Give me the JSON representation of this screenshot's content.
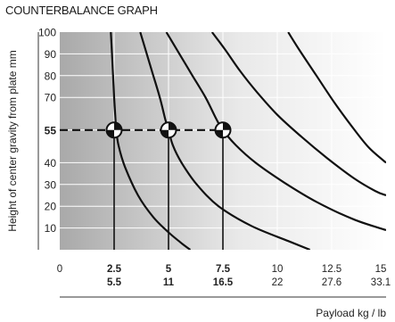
{
  "chart_data": {
    "type": "line",
    "title": "COUNTERBALANCE GRAPH",
    "xlabel": "Payload kg / lb",
    "ylabel": "Height of center gravity from plate mm",
    "xlim": [
      0,
      15
    ],
    "ylim": [
      0,
      100
    ],
    "x_ticks": [
      {
        "kg": "0",
        "lb": "",
        "bold": false
      },
      {
        "kg": "2.5",
        "lb": "5.5",
        "bold": true
      },
      {
        "kg": "5",
        "lb": "11",
        "bold": true
      },
      {
        "kg": "7.5",
        "lb": "16.5",
        "bold": true
      },
      {
        "kg": "10",
        "lb": "22",
        "bold": false
      },
      {
        "kg": "12.5",
        "lb": "27.6",
        "bold": false
      },
      {
        "kg": "15",
        "lb": "33.1",
        "bold": false
      }
    ],
    "y_ticks": [
      {
        "label": "10",
        "value": 10,
        "bold": false
      },
      {
        "label": "20",
        "value": 20,
        "bold": false
      },
      {
        "label": "30",
        "value": 30,
        "bold": false
      },
      {
        "label": "40",
        "value": 40,
        "bold": false
      },
      {
        "label": "55",
        "value": 55,
        "bold": true
      },
      {
        "label": "70",
        "value": 70,
        "bold": false
      },
      {
        "label": "80",
        "value": 80,
        "bold": false
      },
      {
        "label": "90",
        "value": 90,
        "bold": false
      },
      {
        "label": "100",
        "value": 100,
        "bold": false
      }
    ],
    "series": [
      {
        "points": [
          [
            2.35,
            100
          ],
          [
            2.4,
            90
          ],
          [
            2.45,
            80
          ],
          [
            2.5,
            70
          ],
          [
            2.55,
            62
          ],
          [
            2.6,
            55
          ],
          [
            2.7,
            48
          ],
          [
            3.0,
            38
          ],
          [
            3.6,
            25
          ],
          [
            4.3,
            15
          ],
          [
            5.0,
            8
          ],
          [
            5.6,
            3
          ],
          [
            6.0,
            0
          ]
        ]
      },
      {
        "points": [
          [
            3.7,
            100
          ],
          [
            4.0,
            90
          ],
          [
            4.3,
            80
          ],
          [
            4.6,
            70
          ],
          [
            4.85,
            60
          ],
          [
            5.0,
            55
          ],
          [
            5.2,
            48
          ],
          [
            5.6,
            40
          ],
          [
            6.3,
            30
          ],
          [
            7.3,
            20
          ],
          [
            8.8,
            11
          ],
          [
            10.5,
            4
          ],
          [
            11.5,
            0
          ]
        ]
      },
      {
        "points": [
          [
            4.9,
            100
          ],
          [
            5.5,
            90
          ],
          [
            6.1,
            80
          ],
          [
            6.7,
            70
          ],
          [
            7.2,
            60
          ],
          [
            7.5,
            55
          ],
          [
            8.1,
            48
          ],
          [
            9.0,
            40
          ],
          [
            10.3,
            31
          ],
          [
            11.8,
            22
          ],
          [
            13.5,
            14
          ],
          [
            15,
            9
          ]
        ]
      },
      {
        "points": [
          [
            7.0,
            100
          ],
          [
            7.6,
            92
          ],
          [
            8.3,
            82
          ],
          [
            9.1,
            72
          ],
          [
            10.0,
            62
          ],
          [
            11.1,
            52
          ],
          [
            12.3,
            42
          ],
          [
            13.5,
            33
          ],
          [
            14.5,
            27
          ],
          [
            15,
            25
          ]
        ]
      },
      {
        "points": [
          [
            10.5,
            100
          ],
          [
            11.0,
            92
          ],
          [
            11.8,
            80
          ],
          [
            12.6,
            68
          ],
          [
            13.4,
            57
          ],
          [
            14.2,
            47
          ],
          [
            15,
            40
          ]
        ]
      }
    ],
    "reference_line": {
      "y": 55
    },
    "markers": [
      {
        "x": 2.5,
        "y": 55
      },
      {
        "x": 5,
        "y": 55
      },
      {
        "x": 7.5,
        "y": 55
      }
    ],
    "grid": true,
    "legend": "none"
  }
}
